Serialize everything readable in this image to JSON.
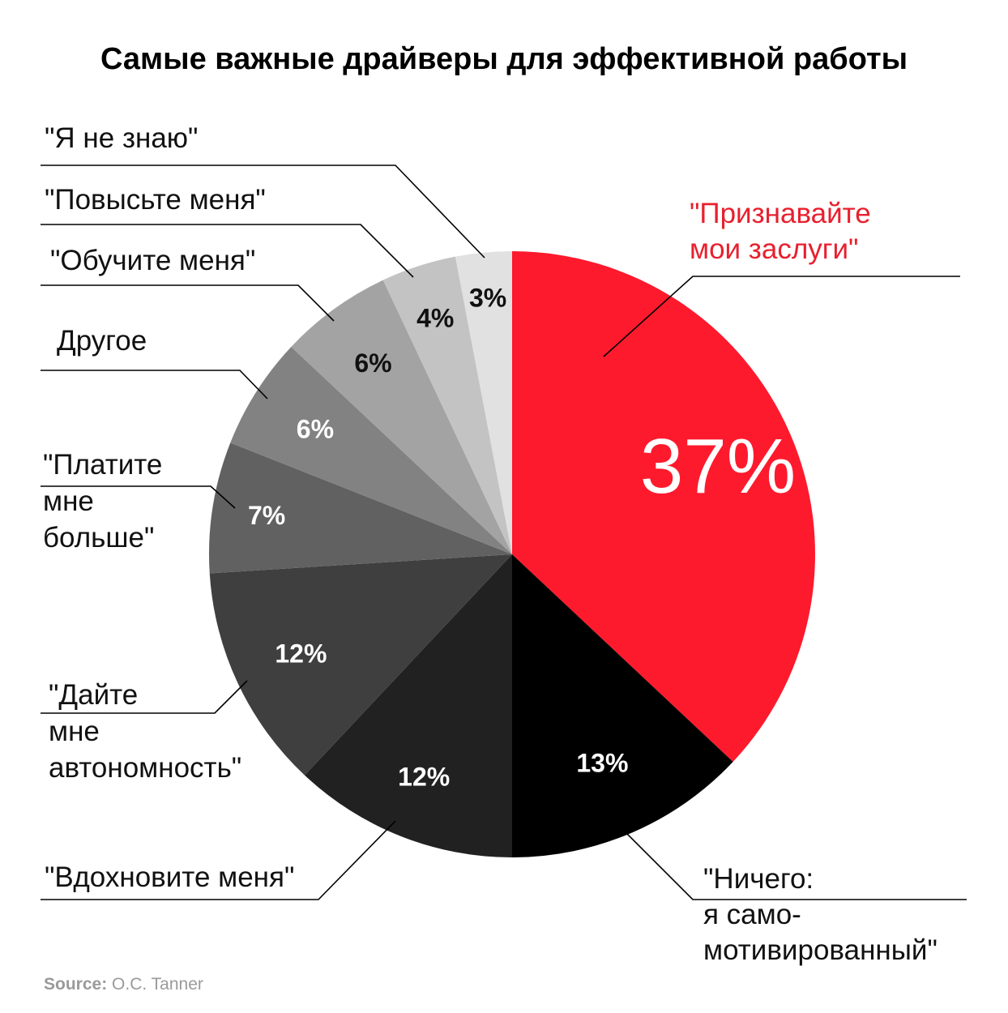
{
  "chart_data": {
    "type": "pie",
    "title": "Самые важные драйверы для эффективной работы",
    "slices": [
      {
        "label_lines": [
          "\"Признавайте",
          "мои заслуги\""
        ],
        "value": 37,
        "value_label": "37%",
        "color": "#fe1a2d"
      },
      {
        "label_lines": [
          "\"Ничего:",
          "я само-",
          "мотивированный\""
        ],
        "value": 13,
        "value_label": "13%",
        "color": "#000000"
      },
      {
        "label_lines": [
          "\"Вдохновите меня\""
        ],
        "value": 12,
        "value_label": "12%",
        "color": "#212121"
      },
      {
        "label_lines": [
          "\"Дайте",
          "мне",
          "автономность\""
        ],
        "value": 12,
        "value_label": "12%",
        "color": "#3f3f3f"
      },
      {
        "label_lines": [
          "\"Платите",
          "мне",
          "больше\""
        ],
        "value": 7,
        "value_label": "7%",
        "color": "#616161"
      },
      {
        "label_lines": [
          "Другое"
        ],
        "value": 6,
        "value_label": "6%",
        "color": "#828282"
      },
      {
        "label_lines": [
          "\"Обучите меня\""
        ],
        "value": 6,
        "value_label": "6%",
        "color": "#a3a3a3"
      },
      {
        "label_lines": [
          "\"Повысьте меня\""
        ],
        "value": 4,
        "value_label": "4%",
        "color": "#c3c3c3"
      },
      {
        "label_lines": [
          "\"Я не знаю\""
        ],
        "value": 3,
        "value_label": "3%",
        "color": "#e1e1e1"
      }
    ]
  },
  "source": {
    "label": "Source:",
    "text": "O.C. Tanner"
  }
}
